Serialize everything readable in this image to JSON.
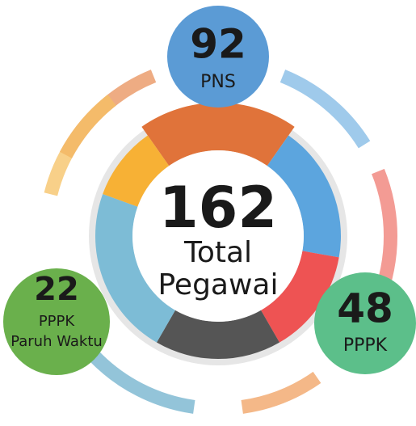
{
  "center": {
    "value": "162",
    "label": "Total Pegawai"
  },
  "nodes": [
    {
      "value": "92",
      "label": "PNS"
    },
    {
      "value": "48",
      "label": "PPPK"
    },
    {
      "value": "22",
      "label": "PPPK Paruh Waktu"
    }
  ]
}
